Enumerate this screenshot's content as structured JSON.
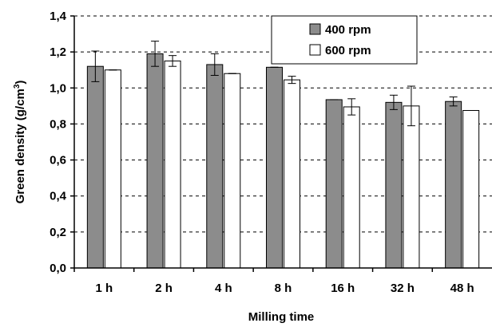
{
  "chart_data": {
    "type": "bar",
    "title": "",
    "xlabel": "Milling time",
    "ylabel_main": "Green density (g/cm",
    "ylabel_sup": "3",
    "ylabel_close": ")",
    "ylim": [
      0,
      1.4
    ],
    "yticks": [
      "0,0",
      "0,2",
      "0,4",
      "0,6",
      "0,8",
      "1,0",
      "1,2",
      "1,4"
    ],
    "grid": true,
    "legend_position": "top-right",
    "categories": [
      "1 h",
      "2 h",
      "4 h",
      "8 h",
      "16 h",
      "32 h",
      "48 h"
    ],
    "series": [
      {
        "name": "400 rpm",
        "color": "#8c8c8c",
        "values": [
          1.12,
          1.19,
          1.13,
          1.115,
          0.935,
          0.92,
          0.925
        ],
        "errors": [
          0.085,
          0.07,
          0.06,
          0.0,
          0.0,
          0.04,
          0.025
        ]
      },
      {
        "name": "600 rpm",
        "color": "#ffffff",
        "values": [
          1.1,
          1.15,
          1.08,
          1.045,
          0.895,
          0.9,
          0.875
        ],
        "errors": [
          0.0,
          0.03,
          0.0,
          0.02,
          0.045,
          0.11,
          0.0
        ]
      }
    ]
  }
}
